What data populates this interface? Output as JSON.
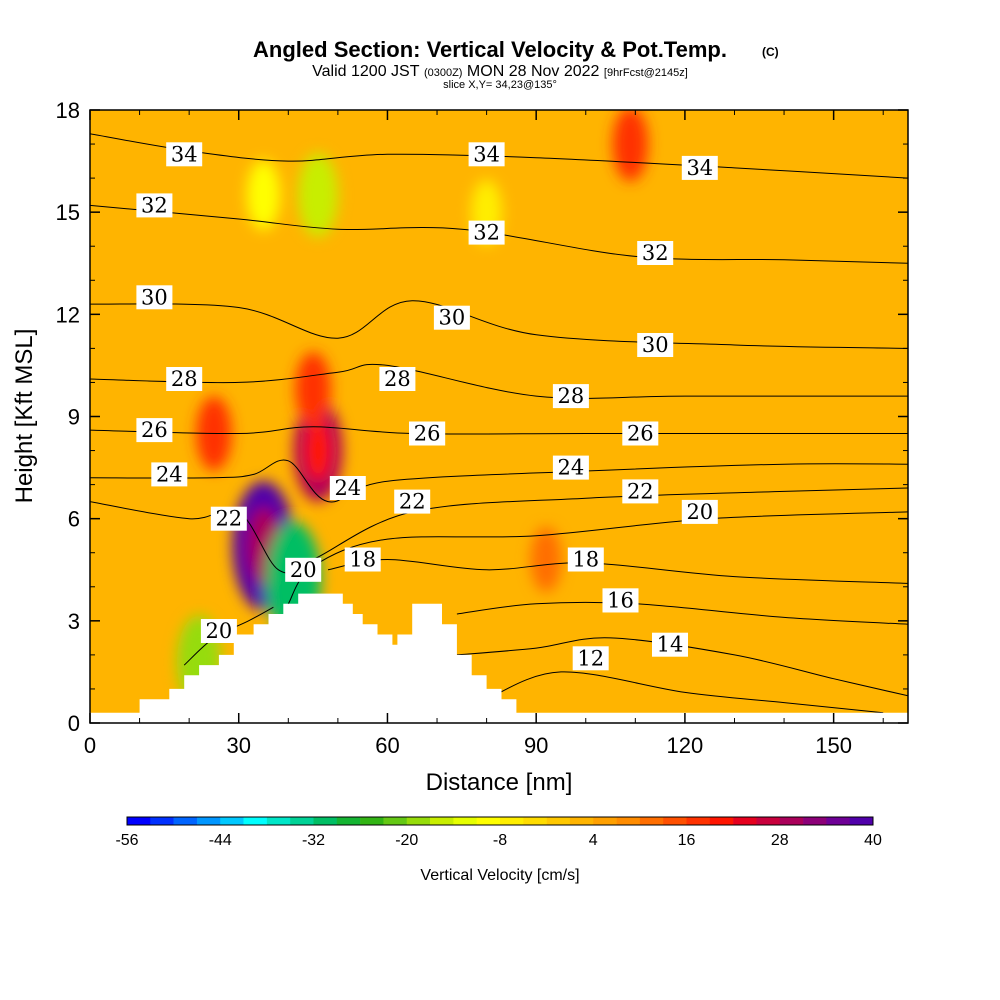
{
  "header": {
    "title_main": "Angled Section: Vertical Velocity & Pot.Temp.",
    "title_mark": "(C)",
    "valid_a": "Valid 1200 JST",
    "valid_b": "(0300Z)",
    "valid_c": "MON 28 Nov 2022",
    "valid_d": "[9hrFcst@2145z]",
    "slice": "slice X,Y= 34,23@135°"
  },
  "chart_data": {
    "type": "heatmap",
    "title": "Angled Section: Vertical Velocity & Pot.Temp.",
    "xlabel": "Distance [nm]",
    "ylabel": "Height [Kft MSL]",
    "xlim": [
      0,
      165
    ],
    "ylim": [
      0,
      18
    ],
    "x_ticks": [
      0,
      30,
      60,
      90,
      120,
      150
    ],
    "x_tick_labels": [
      "0",
      "30",
      "60",
      "90",
      "120",
      "150"
    ],
    "y_ticks": [
      0,
      3,
      6,
      9,
      12,
      15,
      18
    ],
    "y_tick_labels": [
      "0",
      "3",
      "6",
      "9",
      "12",
      "15",
      "18"
    ],
    "background_value": 2,
    "field_features": [
      {
        "x": 35,
        "y": 5.2,
        "value": 40
      },
      {
        "x": 46,
        "y": 8.0,
        "value": 28
      },
      {
        "x": 25,
        "y": 8.5,
        "value": 16
      },
      {
        "x": 45,
        "y": 9.8,
        "value": 16
      },
      {
        "x": 92,
        "y": 4.8,
        "value": 12
      },
      {
        "x": 46,
        "y": 15.5,
        "value": -16
      },
      {
        "x": 35,
        "y": 15.5,
        "value": -10
      },
      {
        "x": 80,
        "y": 15.0,
        "value": -8
      },
      {
        "x": 41,
        "y": 4.2,
        "value": -30
      },
      {
        "x": 22,
        "y": 1.8,
        "value": -20
      },
      {
        "x": 109,
        "y": 17.0,
        "value": 16
      }
    ],
    "terrain": {
      "x": [
        0,
        10,
        10,
        16,
        16,
        19,
        19,
        22,
        22,
        26,
        26,
        29,
        29,
        33,
        33,
        36,
        36,
        39,
        39,
        42,
        42,
        51,
        51,
        53,
        53,
        55,
        55,
        58,
        58,
        61,
        61,
        62,
        62,
        65,
        65,
        71,
        71,
        74,
        74,
        77,
        77,
        80,
        80,
        83,
        83,
        86,
        86,
        90,
        90,
        165
      ],
      "height": [
        0.3,
        0.3,
        0.7,
        0.7,
        1.0,
        1.0,
        1.4,
        1.4,
        1.7,
        1.7,
        2.0,
        2.0,
        2.6,
        2.6,
        2.9,
        2.9,
        3.2,
        3.2,
        3.5,
        3.5,
        3.8,
        3.8,
        3.5,
        3.5,
        3.2,
        3.2,
        2.9,
        2.9,
        2.6,
        2.6,
        2.3,
        2.3,
        2.6,
        2.6,
        3.5,
        3.5,
        2.9,
        2.9,
        2.0,
        2.0,
        1.4,
        1.4,
        1.0,
        1.0,
        0.7,
        0.7,
        0.3,
        0.3,
        0.3,
        0.3
      ]
    },
    "theta_levels": [
      10,
      12,
      14,
      16,
      18,
      20,
      22,
      24,
      26,
      28,
      30,
      32,
      34
    ],
    "theta_contours": [
      {
        "level": 12,
        "label": "12",
        "label_at": [
          101,
          1.9
        ],
        "points": [
          [
            80,
            0.7
          ],
          [
            95,
            1.5
          ],
          [
            120,
            0.9
          ],
          [
            140,
            0.6
          ],
          [
            160,
            0.3
          ]
        ]
      },
      {
        "level": 14,
        "label": "14",
        "label_at": [
          117,
          2.3
        ],
        "points": [
          [
            74,
            2.0
          ],
          [
            90,
            2.2
          ],
          [
            105,
            2.5
          ],
          [
            130,
            2.0
          ],
          [
            150,
            1.3
          ],
          [
            165,
            0.8
          ]
        ]
      },
      {
        "level": 16,
        "label": "16",
        "label_at": [
          107,
          3.6
        ],
        "points": [
          [
            74,
            3.2
          ],
          [
            90,
            3.5
          ],
          [
            110,
            3.5
          ],
          [
            140,
            3.1
          ],
          [
            165,
            2.9
          ]
        ]
      },
      {
        "level": 18,
        "label": "18",
        "label_at": [
          55,
          4.8
        ],
        "points": [
          [
            48,
            4.5
          ],
          [
            60,
            4.8
          ],
          [
            80,
            4.5
          ],
          [
            100,
            4.7
          ],
          [
            130,
            4.3
          ],
          [
            165,
            4.1
          ]
        ]
      },
      {
        "level": 20,
        "label": "20",
        "label_at": [
          43,
          4.5
        ],
        "points": [
          [
            40,
            3.5
          ],
          [
            45,
            4.6
          ],
          [
            60,
            5.4
          ],
          [
            90,
            5.5
          ],
          [
            125,
            6.0
          ],
          [
            165,
            6.2
          ]
        ]
      },
      {
        "level": 20,
        "label": "20",
        "label_at": [
          26,
          2.7
        ],
        "points": [
          [
            19,
            1.7
          ],
          [
            25,
            2.5
          ],
          [
            32,
            3.0
          ],
          [
            37,
            3.4
          ]
        ]
      },
      {
        "level": 22,
        "label": "22",
        "label_at": [
          28,
          6.0
        ],
        "points": [
          [
            0,
            6.5
          ],
          [
            20,
            6.0
          ],
          [
            30,
            6.2
          ],
          [
            38,
            4.5
          ],
          [
            45,
            4.8
          ],
          [
            65,
            6.2
          ],
          [
            100,
            6.6
          ],
          [
            140,
            6.8
          ],
          [
            165,
            6.9
          ]
        ]
      },
      {
        "level": 24,
        "label": "24",
        "label_at": [
          52,
          6.9
        ],
        "points": [
          [
            0,
            7.2
          ],
          [
            25,
            7.2
          ],
          [
            33,
            7.3
          ],
          [
            40,
            7.7
          ],
          [
            48,
            6.5
          ],
          [
            60,
            7.1
          ],
          [
            100,
            7.4
          ],
          [
            140,
            7.6
          ],
          [
            165,
            7.6
          ]
        ]
      },
      {
        "level": 26,
        "label": "26",
        "label_at": [
          68,
          8.5
        ],
        "points": [
          [
            0,
            8.6
          ],
          [
            30,
            8.5
          ],
          [
            45,
            8.7
          ],
          [
            65,
            8.5
          ],
          [
            100,
            8.5
          ],
          [
            140,
            8.5
          ],
          [
            165,
            8.5
          ]
        ]
      },
      {
        "level": 28,
        "label": "28",
        "label_at": [
          62,
          10.1
        ],
        "points": [
          [
            0,
            10.1
          ],
          [
            30,
            10.0
          ],
          [
            50,
            10.3
          ],
          [
            60,
            10.5
          ],
          [
            90,
            9.6
          ],
          [
            120,
            9.6
          ],
          [
            165,
            9.6
          ]
        ]
      },
      {
        "level": 30,
        "label": "30",
        "label_at": [
          73,
          11.9
        ],
        "points": [
          [
            0,
            12.3
          ],
          [
            30,
            12.2
          ],
          [
            50,
            11.3
          ],
          [
            65,
            12.4
          ],
          [
            90,
            11.4
          ],
          [
            130,
            11.1
          ],
          [
            165,
            11.0
          ]
        ]
      },
      {
        "level": 32,
        "label": "32",
        "label_at": [
          80,
          14.4
        ],
        "points": [
          [
            0,
            15.2
          ],
          [
            30,
            14.8
          ],
          [
            50,
            14.5
          ],
          [
            75,
            14.5
          ],
          [
            110,
            13.7
          ],
          [
            140,
            13.6
          ],
          [
            165,
            13.5
          ]
        ]
      },
      {
        "level": 34,
        "label": "34",
        "label_at": [
          80,
          16.7
        ],
        "points": [
          [
            0,
            17.3
          ],
          [
            20,
            16.8
          ],
          [
            40,
            16.5
          ],
          [
            60,
            16.7
          ],
          [
            90,
            16.6
          ],
          [
            130,
            16.3
          ],
          [
            165,
            16.0
          ]
        ]
      }
    ],
    "extra_labels": [
      {
        "label": "34",
        "at": [
          19,
          16.7
        ]
      },
      {
        "label": "32",
        "at": [
          13,
          15.2
        ]
      },
      {
        "label": "30",
        "at": [
          13,
          12.5
        ]
      },
      {
        "label": "28",
        "at": [
          19,
          10.1
        ]
      },
      {
        "label": "26",
        "at": [
          13,
          8.6
        ]
      },
      {
        "label": "24",
        "at": [
          16,
          7.3
        ]
      },
      {
        "label": "34",
        "at": [
          123,
          16.3
        ]
      },
      {
        "label": "32",
        "at": [
          114,
          13.8
        ]
      },
      {
        "label": "30",
        "at": [
          114,
          11.1
        ]
      },
      {
        "label": "28",
        "at": [
          97,
          9.6
        ]
      },
      {
        "label": "26",
        "at": [
          111,
          8.5
        ]
      },
      {
        "label": "24",
        "at": [
          97,
          7.5
        ]
      },
      {
        "label": "22",
        "at": [
          111,
          6.8
        ]
      },
      {
        "label": "22",
        "at": [
          65,
          6.5
        ]
      },
      {
        "label": "26",
        "at": [
          68,
          8.5
        ]
      },
      {
        "label": "20",
        "at": [
          123,
          6.2
        ]
      },
      {
        "label": "16",
        "at": [
          107,
          3.6
        ]
      },
      {
        "label": "18",
        "at": [
          100,
          4.8
        ]
      }
    ],
    "colorbar": {
      "label": "Vertical Velocity [cm/s]",
      "tick_labels": [
        "-56",
        "-44",
        "-32",
        "-20",
        "-8",
        "4",
        "16",
        "28",
        "40"
      ],
      "min": -56,
      "max": 40,
      "colors": [
        "#0000ff",
        "#0030ff",
        "#0064ff",
        "#0096ff",
        "#00c8ff",
        "#00ffff",
        "#00e6c8",
        "#00d296",
        "#00be64",
        "#14b432",
        "#32b414",
        "#64c814",
        "#96dc0a",
        "#c8ee00",
        "#e6ff00",
        "#ffff00",
        "#ffee00",
        "#ffdc00",
        "#ffc800",
        "#ffb400",
        "#ffa000",
        "#ff8c00",
        "#ff6e00",
        "#ff5000",
        "#ff3200",
        "#ff1400",
        "#e6001e",
        "#c8003c",
        "#aa005a",
        "#8c0078",
        "#6e0096",
        "#5000aa"
      ]
    }
  }
}
